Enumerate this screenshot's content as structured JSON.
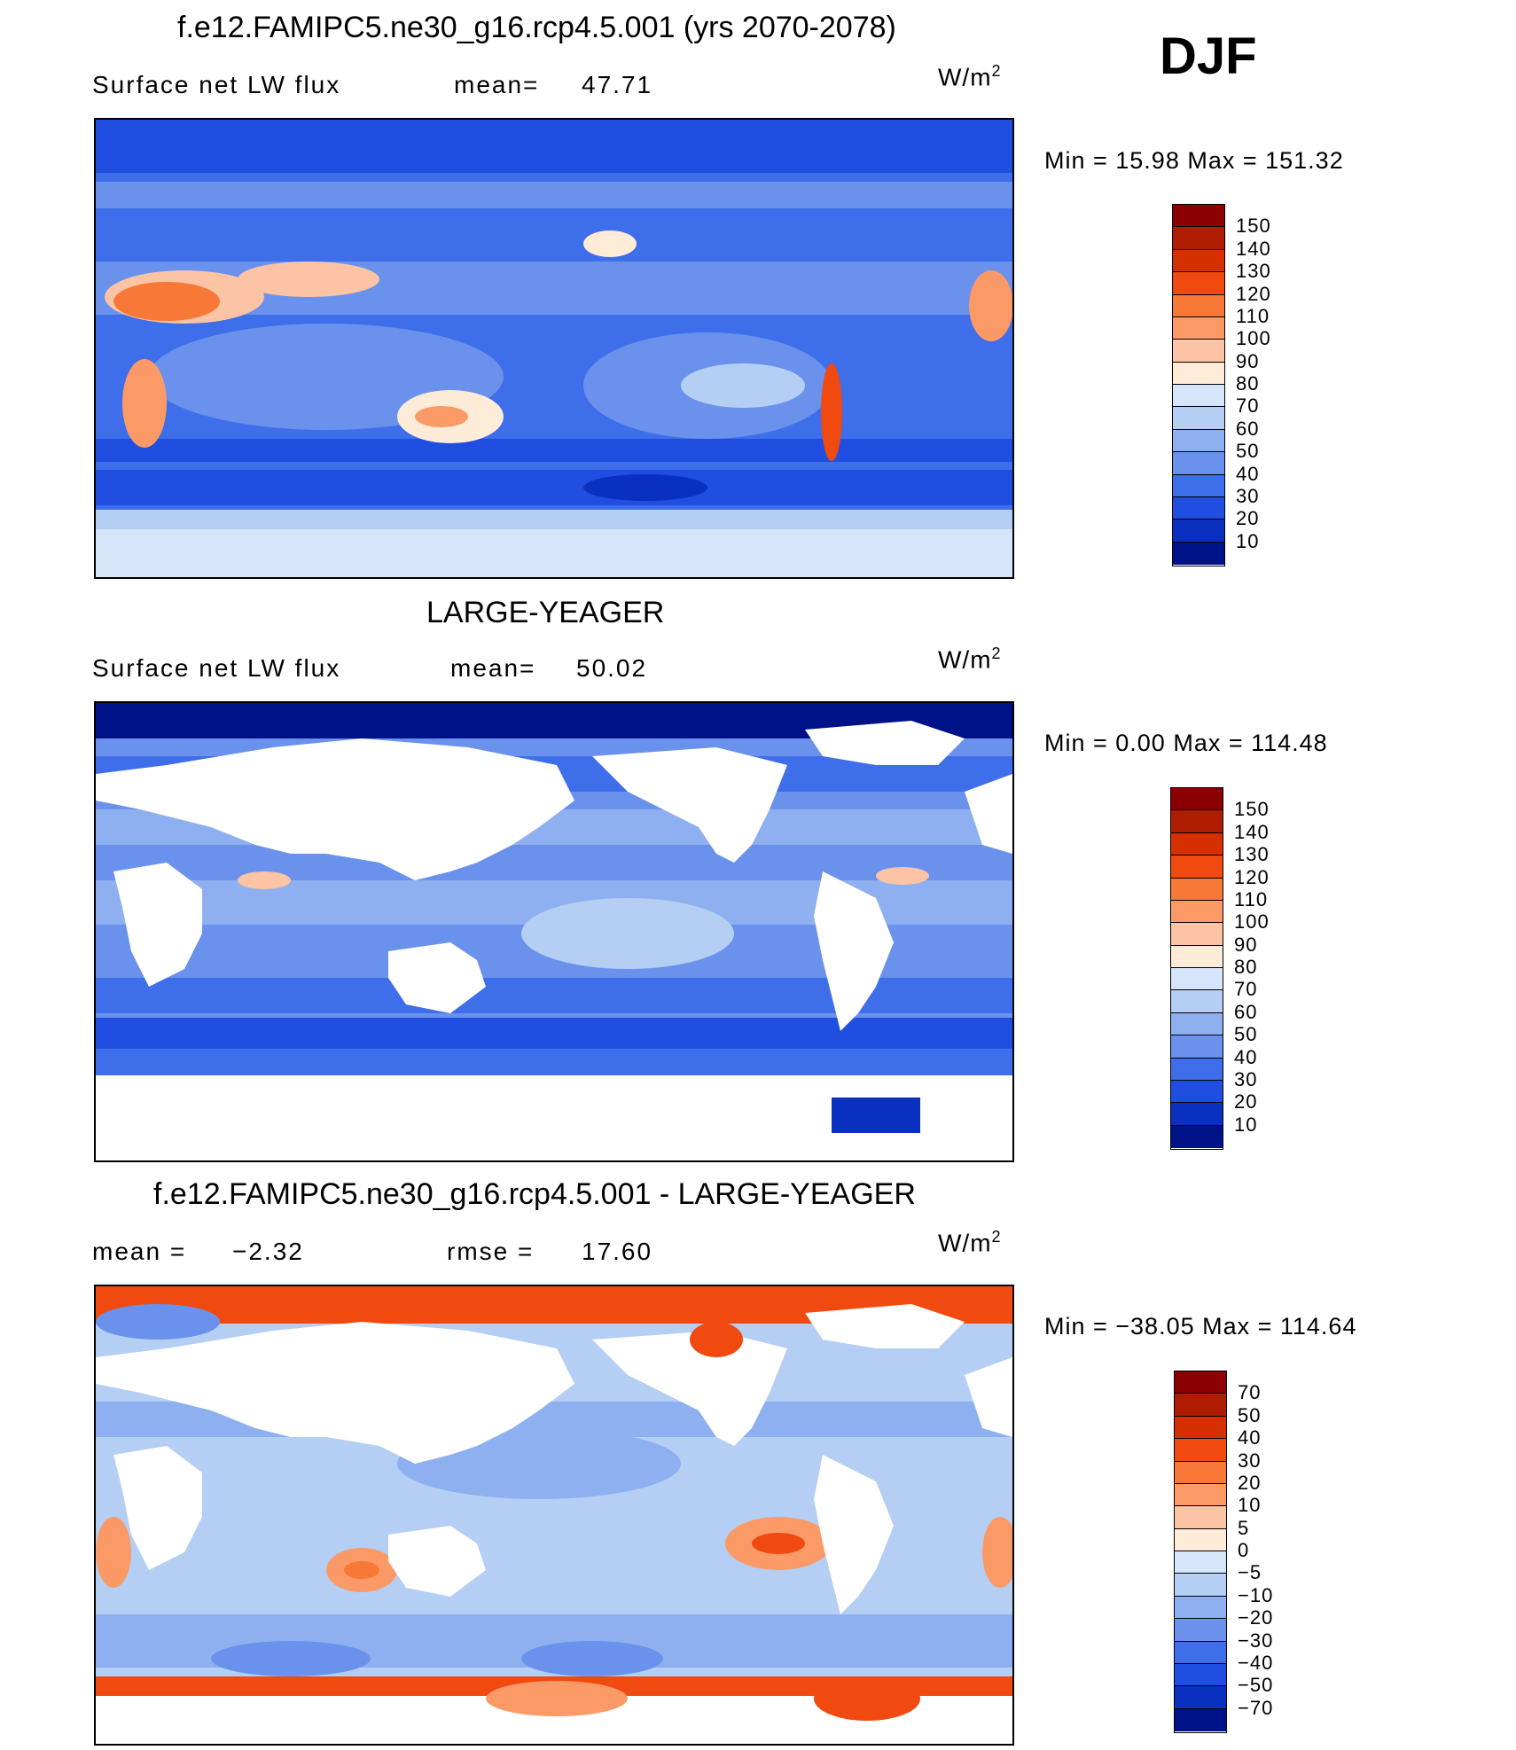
{
  "season": "DJF",
  "panels": [
    {
      "title": "f.e12.FAMIPC5.ne30_g16.rcp4.5.001 (yrs 2070-2078)",
      "left_label": "Surface net LW flux",
      "center_label": "mean=",
      "center_value": "47.71",
      "units": "W/m",
      "units_sup": "2",
      "minmax": "Min =   15.98 Max = 151.32",
      "land_masked": false,
      "colorbar": {
        "labels": [
          "150",
          "140",
          "130",
          "120",
          "110",
          "100",
          "90",
          "80",
          "70",
          "60",
          "50",
          "40",
          "30",
          "20",
          "10"
        ],
        "colors": [
          "#8b0000",
          "#b01c00",
          "#d63000",
          "#f04a10",
          "#f87838",
          "#fb9a66",
          "#fcc4a4",
          "#feebd8",
          "#d6e6fa",
          "#b4cef4",
          "#8fb0f0",
          "#6a92ec",
          "#3f6eea",
          "#1f4ee0",
          "#0a30c0",
          "#001288"
        ]
      }
    },
    {
      "title": "LARGE-YEAGER",
      "left_label": "Surface net LW flux",
      "center_label": "mean=",
      "center_value": "50.02",
      "units": "W/m",
      "units_sup": "2",
      "minmax": "Min =    0.00 Max = 114.48",
      "land_masked": true,
      "colorbar": {
        "labels": [
          "150",
          "140",
          "130",
          "120",
          "110",
          "100",
          "90",
          "80",
          "70",
          "60",
          "50",
          "40",
          "30",
          "20",
          "10"
        ],
        "colors": [
          "#8b0000",
          "#b01c00",
          "#d63000",
          "#f04a10",
          "#f87838",
          "#fb9a66",
          "#fcc4a4",
          "#feebd8",
          "#d6e6fa",
          "#b4cef4",
          "#8fb0f0",
          "#6a92ec",
          "#3f6eea",
          "#1f4ee0",
          "#0a30c0",
          "#001288"
        ]
      }
    },
    {
      "title": "f.e12.FAMIPC5.ne30_g16.rcp4.5.001 - LARGE-YEAGER",
      "left_label": "mean =",
      "left_value": "−2.32",
      "center_label": "rmse =",
      "center_value": "17.60",
      "units": "W/m",
      "units_sup": "2",
      "minmax": "Min = −38.05 Max = 114.64",
      "land_masked": true,
      "colorbar": {
        "labels": [
          "70",
          "50",
          "40",
          "30",
          "20",
          "10",
          "5",
          "0",
          "−5",
          "−10",
          "−20",
          "−30",
          "−40",
          "−50",
          "−70"
        ],
        "colors": [
          "#8b0000",
          "#b01c00",
          "#d63000",
          "#f04a10",
          "#f87838",
          "#fb9a66",
          "#fcc4a4",
          "#feebd8",
          "#d6e6fa",
          "#b4cef4",
          "#8fb0f0",
          "#6a92ec",
          "#3f6eea",
          "#1f4ee0",
          "#0a30c0",
          "#001288"
        ]
      }
    }
  ]
}
